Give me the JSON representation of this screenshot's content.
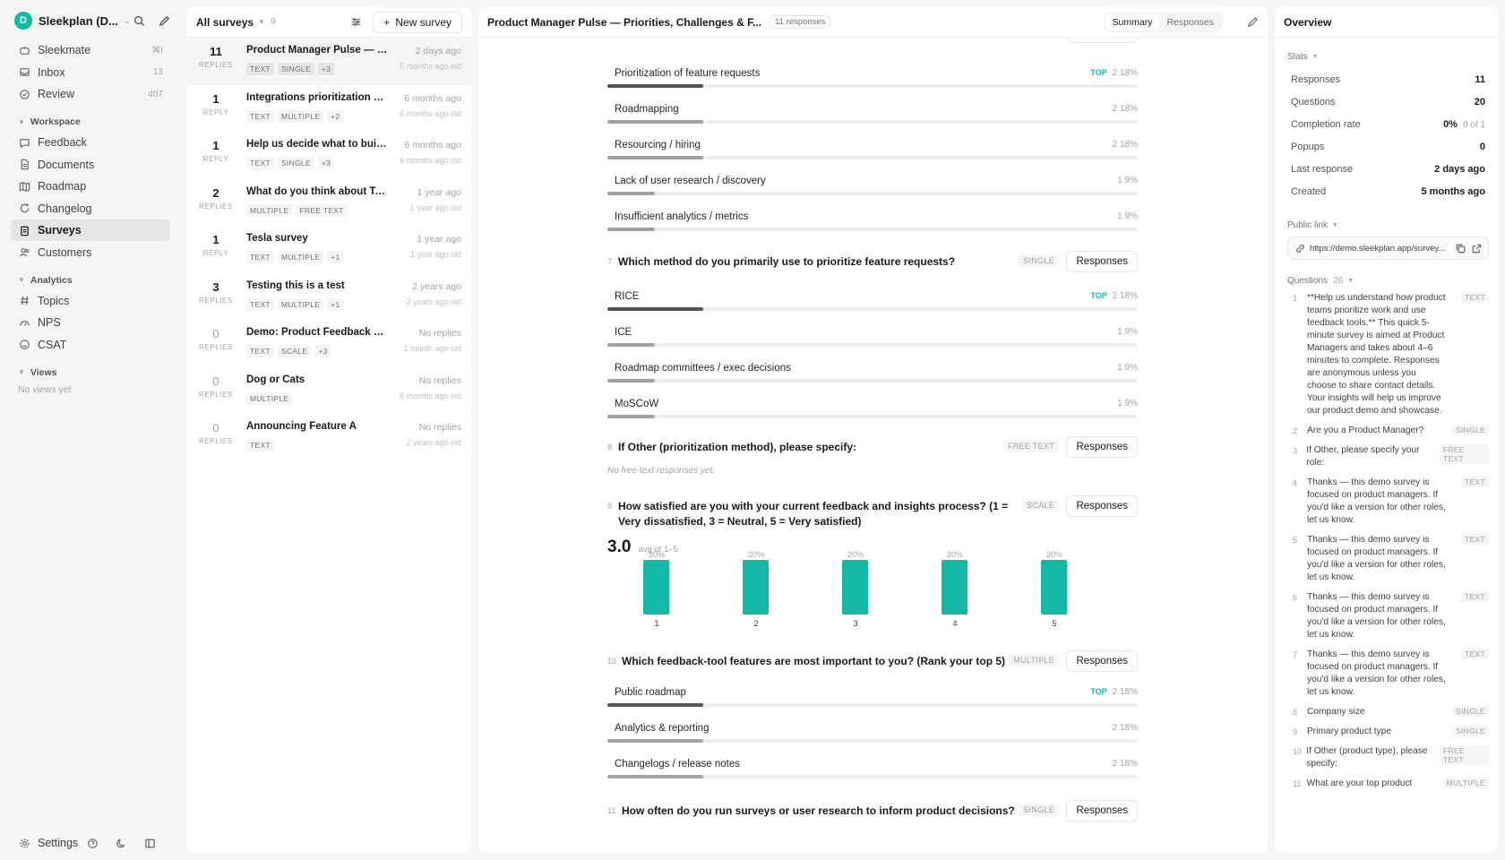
{
  "workspace": {
    "avatar": "D",
    "name": "Sleekplan (D..."
  },
  "sidebar": {
    "top_items": [
      {
        "label": "Sleekmate",
        "count": "⌘I"
      },
      {
        "label": "Inbox",
        "count": "13"
      },
      {
        "label": "Review",
        "count": "407"
      }
    ],
    "workspace_label": "Workspace",
    "workspace_items": [
      {
        "label": "Feedback"
      },
      {
        "label": "Documents"
      },
      {
        "label": "Roadmap"
      },
      {
        "label": "Changelog"
      },
      {
        "label": "Surveys"
      },
      {
        "label": "Customers"
      }
    ],
    "analytics_label": "Analytics",
    "analytics_items": [
      {
        "label": "Topics"
      },
      {
        "label": "NPS"
      },
      {
        "label": "CSAT"
      }
    ],
    "views_label": "Views",
    "views_empty": "No views yet",
    "settings_label": "Settings"
  },
  "survey_list": {
    "title": "All surveys",
    "count": "9",
    "new_button": "New survey",
    "items": [
      {
        "count": "11",
        "unit": "REPLIES",
        "title": "Product Manager Pulse — Pr...",
        "tags": [
          "TEXT",
          "SINGLE",
          "+3"
        ],
        "date": "2 days ago",
        "age": "5 months ago old"
      },
      {
        "count": "1",
        "unit": "REPLY",
        "title": "Integrations prioritization – t...",
        "tags": [
          "TEXT",
          "MULTIPLE",
          "+2"
        ],
        "date": "6 months ago",
        "age": "6 months ago old"
      },
      {
        "count": "1",
        "unit": "REPLY",
        "title": "Help us decide what to build ...",
        "tags": [
          "TEXT",
          "SINGLE",
          "+3"
        ],
        "date": "6 months ago",
        "age": "6 months ago old"
      },
      {
        "count": "2",
        "unit": "REPLIES",
        "title": "What do you think about Tesla",
        "tags": [
          "MULTIPLE",
          "FREE TEXT"
        ],
        "date": "1 year ago",
        "age": "1 year ago old"
      },
      {
        "count": "1",
        "unit": "REPLY",
        "title": "Tesla survey",
        "tags": [
          "TEXT",
          "MULTIPLE",
          "+1"
        ],
        "date": "1 year ago",
        "age": "1 year ago old"
      },
      {
        "count": "3",
        "unit": "REPLIES",
        "title": "Testing this is a test",
        "tags": [
          "TEXT",
          "MULTIPLE",
          "+1"
        ],
        "date": "2 years ago",
        "age": "2 years ago old"
      },
      {
        "count": "0",
        "unit": "REPLIES",
        "title": "Demo: Product Feedback Sur...",
        "tags": [
          "TEXT",
          "SCALE",
          "+3"
        ],
        "date": "No replies",
        "age": "1 month ago old"
      },
      {
        "count": "0",
        "unit": "REPLIES",
        "title": "Dog or Cats",
        "tags": [
          "MULTIPLE"
        ],
        "date": "No replies",
        "age": "6 months ago old"
      },
      {
        "count": "0",
        "unit": "REPLIES",
        "title": "Announcing Feature A",
        "tags": [
          "TEXT"
        ],
        "date": "No replies",
        "age": "2 years ago old"
      }
    ]
  },
  "main": {
    "title": "Product Manager Pulse — Priorities, Challenges & F...",
    "responses_badge": "11 responses",
    "tabs": [
      "Summary",
      "Responses"
    ],
    "responses_button": "Responses",
    "top_label": "TOP",
    "q6_options": [
      {
        "label": "Prioritization of feature requests",
        "count": "2",
        "pct": "18%",
        "fraction": 0.18,
        "top": true
      },
      {
        "label": "Roadmapping",
        "count": "2",
        "pct": "18%",
        "fraction": 0.18,
        "top": false
      },
      {
        "label": "Resourcing / hiring",
        "count": "2",
        "pct": "18%",
        "fraction": 0.18,
        "top": false
      },
      {
        "label": "Lack of user research / discovery",
        "count": "1",
        "pct": "9%",
        "fraction": 0.09,
        "top": false
      },
      {
        "label": "Insufficient analytics / metrics",
        "count": "1",
        "pct": "9%",
        "fraction": 0.09,
        "top": false
      }
    ],
    "q7": {
      "num": "7",
      "text": "Which method do you primarily use to prioritize feature requests?",
      "type": "SINGLE",
      "options": [
        {
          "label": "RICE",
          "count": "2",
          "pct": "18%",
          "fraction": 0.18,
          "top": true
        },
        {
          "label": "ICE",
          "count": "1",
          "pct": "9%",
          "fraction": 0.09,
          "top": false
        },
        {
          "label": "Roadmap committees / exec decisions",
          "count": "1",
          "pct": "9%",
          "fraction": 0.09,
          "top": false
        },
        {
          "label": "MoSCoW",
          "count": "1",
          "pct": "9%",
          "fraction": 0.09,
          "top": false
        }
      ]
    },
    "q8": {
      "num": "8",
      "text": "If Other (prioritization method), please specify:",
      "type": "FREE TEXT",
      "empty": "No free-text responses yet."
    },
    "q9": {
      "num": "9",
      "text": "How satisfied are you with your current feedback and insights process? (1 = Very dissatisfied, 3 = Neutral, 5 = Very satisfied)",
      "type": "SCALE",
      "avg": "3.0",
      "avg_note": "avg of 1–5"
    },
    "q10": {
      "num": "10",
      "text": "Which feedback-tool features are most important to you? (Rank your top 5)",
      "type": "MULTIPLE",
      "options": [
        {
          "label": "Public roadmap",
          "count": "2",
          "pct": "18%",
          "fraction": 0.18,
          "top": true
        },
        {
          "label": "Analytics & reporting",
          "count": "2",
          "pct": "18%",
          "fraction": 0.18,
          "top": false
        },
        {
          "label": "Changelogs / release notes",
          "count": "2",
          "pct": "18%",
          "fraction": 0.18,
          "top": false
        }
      ]
    },
    "q11": {
      "num": "11",
      "text": "How often do you run surveys or user research to inform product decisions?",
      "type": "SINGLE"
    }
  },
  "chart_data": {
    "type": "bar",
    "categories": [
      "1",
      "2",
      "3",
      "4",
      "5"
    ],
    "values": [
      20,
      20,
      20,
      20,
      20
    ],
    "value_labels": [
      "20%",
      "20%",
      "20%",
      "20%",
      "20%"
    ],
    "color": "#14b8a6"
  },
  "overview": {
    "title": "Overview",
    "stats_label": "Stats",
    "stats": [
      {
        "label": "Responses",
        "value": "11",
        "sub": ""
      },
      {
        "label": "Questions",
        "value": "20",
        "sub": ""
      },
      {
        "label": "Completion rate",
        "value": "0%",
        "sub": "0 of 1"
      },
      {
        "label": "Popups",
        "value": "0",
        "sub": ""
      },
      {
        "label": "Last response",
        "value": "2 days ago",
        "sub": ""
      },
      {
        "label": "Created",
        "value": "5 months ago",
        "sub": ""
      }
    ],
    "public_link_label": "Public link",
    "public_link": "https://demo.sleekplan.app/survey...",
    "questions_label": "Questions",
    "questions_count": "26",
    "questions": [
      {
        "num": "1",
        "text": "**Help us understand how product teams prioritize work and use feedback tools.** This quick 5-minute survey is aimed at Product Managers and takes about 4–6 minutes to complete. Responses are anonymous unless you choose to share contact details. Your insights will help us improve our product demo and showcase.",
        "type": "TEXT"
      },
      {
        "num": "2",
        "text": "Are you a Product Manager?",
        "type": "SINGLE"
      },
      {
        "num": "3",
        "text": "If Other, please specify your role:",
        "type": "FREE TEXT"
      },
      {
        "num": "4",
        "text": "Thanks — this demo survey is focused on product managers. If you'd like a version for other roles, let us know.",
        "type": "TEXT"
      },
      {
        "num": "5",
        "text": "Thanks — this demo survey is focused on product managers. If you'd like a version for other roles, let us know.",
        "type": "TEXT"
      },
      {
        "num": "6",
        "text": "Thanks — this demo survey is focused on product managers. If you'd like a version for other roles, let us know.",
        "type": "TEXT"
      },
      {
        "num": "7",
        "text": "Thanks — this demo survey is focused on product managers. If you'd like a version for other roles, let us know.",
        "type": "TEXT"
      },
      {
        "num": "8",
        "text": "Company size",
        "type": "SINGLE"
      },
      {
        "num": "9",
        "text": "Primary product type",
        "type": "SINGLE"
      },
      {
        "num": "10",
        "text": "If Other (product type), please specify:",
        "type": "FREE TEXT"
      },
      {
        "num": "11",
        "text": "What are your top product",
        "type": "MULTIPLE"
      }
    ]
  }
}
